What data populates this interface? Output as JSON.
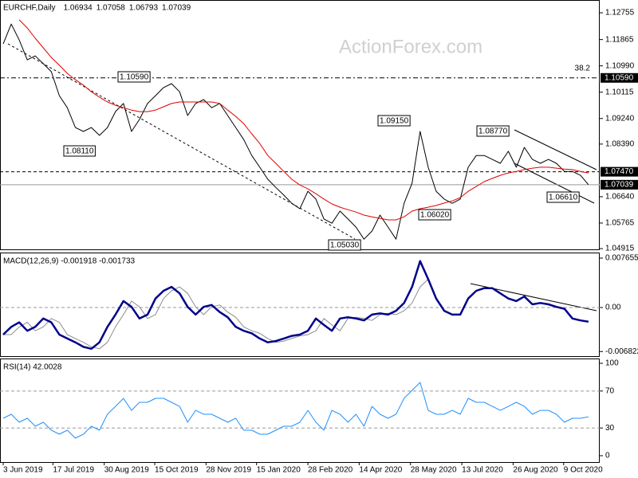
{
  "title": "EURCHF,Daily",
  "header_values": [
    1.06934,
    1.07058,
    1.06793,
    1.07039
  ],
  "watermark": "ActionForex.com",
  "fib_label": "38.2",
  "annotations": [
    "1.10590",
    "1.08110",
    "1.09150",
    "1.08770",
    "1.06610",
    "1.06020",
    "1.05030"
  ],
  "chart_data": [
    {
      "type": "line",
      "xlim": [
        -0.4,
        74.4
      ],
      "ylim": [
        1.0489,
        1.1318
      ],
      "yticks": [
        1.12755,
        1.11865,
        {
          "value": 1.1099,
          "label": "1.10990"
        },
        1.10115,
        {
          "value": 1.0924,
          "label": "1.09240"
        },
        {
          "value": 1.0839,
          "label": "1.08390"
        },
        {
          "value": 1.0664,
          "label": "1.06640"
        },
        1.05765,
        1.04915
      ],
      "xticks": [
        {
          "value": 0,
          "label": "3 Jun 2019"
        },
        {
          "value": 6.2,
          "label": "17 Jul 2019"
        },
        {
          "value": 12.6,
          "label": "30 Aug 2019"
        },
        {
          "value": 18.9,
          "label": "15 Oct 2019"
        },
        {
          "value": 25.3,
          "label": "28 Nov 2019"
        },
        {
          "value": 31.6,
          "label": "15 Jan 2020"
        },
        {
          "value": 38,
          "label": "28 Feb 2020"
        },
        {
          "value": 44.4,
          "label": "14 Apr 2020"
        },
        {
          "value": 50.8,
          "label": "28 May 2020"
        },
        {
          "value": 57.2,
          "label": "13 Jul 2020"
        },
        {
          "value": 63.6,
          "label": "26 Aug 2020"
        },
        {
          "value": 69.9,
          "label": "9 Oct 2020"
        }
      ],
      "levels": [
        {
          "value": 1.1059,
          "label": "1.10590",
          "style": "dashdot"
        },
        {
          "value": 1.0747,
          "label": "1.07470",
          "style": "dash"
        },
        {
          "value": 1.07039,
          "label": "1.07039",
          "style": "solid"
        }
      ],
      "series": [
        {
          "color": "#000000",
          "width": 1,
          "values": [
            1.1172,
            1.1238,
            1.1185,
            1.1119,
            1.1132,
            1.1106,
            1.108,
            1.1,
            1.096,
            1.0894,
            1.0881,
            1.0894,
            1.0868,
            1.0894,
            1.0947,
            1.0974,
            1.0881,
            1.0921,
            1.0974,
            1.1,
            1.1027,
            1.104,
            1.1013,
            1.0934,
            1.0974,
            1.0987,
            1.096,
            1.0974,
            1.0934,
            1.0894,
            1.0854,
            1.0801,
            1.0762,
            1.0722,
            1.0695,
            1.0669,
            1.0642,
            1.0624,
            1.0682,
            1.0656,
            1.059,
            1.0576,
            1.0616,
            1.059,
            1.0563,
            1.0523,
            1.055,
            1.0603,
            1.0563,
            1.0523,
            1.0642,
            1.0709,
            1.0881,
            1.0762,
            1.0682,
            1.0656,
            1.0642,
            1.0656,
            1.0762,
            1.0801,
            1.0801,
            1.0788,
            1.0775,
            1.0815,
            1.0762,
            1.0828,
            1.0788,
            1.0775,
            1.0788,
            1.0775,
            1.0748,
            1.0748,
            1.0735,
            1.0704
          ]
        },
        {
          "color": "#e00000",
          "width": 1,
          "values": [
            null,
            null,
            1.1252,
            1.1225,
            1.1191,
            1.1159,
            1.1127,
            1.1101,
            1.1074,
            1.1053,
            1.1035,
            1.1013,
            1.0995,
            1.0979,
            1.0968,
            1.096,
            1.0952,
            1.0947,
            1.0947,
            1.0952,
            1.0963,
            1.0974,
            1.0979,
            1.0979,
            1.0979,
            1.0979,
            1.0979,
            1.0974,
            1.0952,
            1.0931,
            1.0907,
            1.0873,
            1.0841,
            1.0801,
            1.0775,
            1.0748,
            1.0722,
            1.0703,
            1.069,
            1.0674,
            1.0656,
            1.064,
            1.0629,
            1.0621,
            1.0613,
            1.0603,
            1.0597,
            1.0592,
            1.0587,
            1.0587,
            1.0597,
            1.0616,
            1.0624,
            1.0629,
            1.0635,
            1.0643,
            1.065,
            1.0661,
            1.0682,
            1.0698,
            1.0714,
            1.0725,
            1.0735,
            1.0743,
            1.0748,
            1.0754,
            1.0759,
            1.0762,
            1.0762,
            1.0759,
            1.0756,
            1.0754,
            1.0748,
            1.0743
          ]
        }
      ]
    },
    {
      "type": "line",
      "title": "MACD(12,26,9) -0.001918 -0.001733",
      "xlim": [
        -0.4,
        74.4
      ],
      "ylim": [
        -0.00753,
        0.00852
      ],
      "yticks": [
        0.007655,
        {
          "value": 0,
          "label": "0.00"
        },
        -0.006822
      ],
      "levels": [
        {
          "value": 0,
          "style": "dash"
        }
      ],
      "series": [
        {
          "color": "#8c8c8c",
          "width": 1,
          "values": [
            -0.0042,
            -0.0042,
            -0.003,
            -0.0023,
            -0.0036,
            -0.003,
            -0.0017,
            -0.0023,
            -0.0042,
            -0.0048,
            -0.0054,
            -0.0061,
            -0.0064,
            -0.0054,
            -0.003,
            -0.0011,
            0.001,
            0.0001,
            -0.0017,
            -0.0011,
            0.0014,
            0.0026,
            0.0032,
            0.0022,
            0.0001,
            -0.0011,
            0.0001,
            0.0004,
            -0.0007,
            -0.0015,
            -0.003,
            -0.0036,
            -0.004,
            -0.0048,
            -0.0054,
            -0.0052,
            -0.0048,
            -0.0044,
            -0.0042,
            -0.0036,
            -0.0017,
            -0.0027,
            -0.0036,
            -0.0017,
            -0.0015,
            -0.0017,
            -0.002,
            -0.0011,
            -0.0009,
            -0.0011,
            -0.0005,
            0.0007,
            0.0032,
            0.0044,
            0.0014,
            -0.0005,
            -0.0011,
            -0.0011,
            0.0014,
            0.0026,
            0.003,
            0.003,
            0.0022,
            0.0014,
            0.001,
            0.0017,
            0.0005,
            0.0007,
            0.0005,
            0.0001,
            -0.0002,
            -0.0017,
            -0.002,
            -0.0022
          ]
        },
        {
          "color": "#00008b",
          "width": 2.5,
          "values": [
            -0.0042,
            -0.003,
            -0.0023,
            -0.0036,
            -0.003,
            -0.0017,
            -0.0023,
            -0.0042,
            -0.0048,
            -0.0054,
            -0.0061,
            -0.0064,
            -0.0054,
            -0.003,
            -0.0011,
            0.001,
            0.0001,
            -0.0017,
            -0.0011,
            0.0014,
            0.0026,
            0.0032,
            0.0022,
            0.0001,
            -0.0011,
            0.0001,
            0.0004,
            -0.0007,
            -0.0015,
            -0.003,
            -0.0036,
            -0.004,
            -0.0048,
            -0.0054,
            -0.0052,
            -0.0048,
            -0.0044,
            -0.0042,
            -0.0036,
            -0.0017,
            -0.0027,
            -0.0036,
            -0.0017,
            -0.0015,
            -0.0017,
            -0.002,
            -0.0011,
            -0.0009,
            -0.0011,
            -0.0005,
            0.0007,
            0.0032,
            0.0072,
            0.0044,
            0.0014,
            -0.0005,
            -0.0011,
            -0.0011,
            0.0014,
            0.0026,
            0.003,
            0.003,
            0.0022,
            0.0014,
            0.001,
            0.0017,
            0.0005,
            0.0007,
            0.0005,
            0.0001,
            -0.0002,
            -0.0017,
            -0.002,
            -0.0022
          ]
        }
      ]
    },
    {
      "type": "line",
      "title": "RSI(14) 42.0028",
      "xlim": [
        -0.4,
        74.4
      ],
      "ylim": [
        -6.9,
        105.2
      ],
      "yticks": [
        100,
        70,
        30,
        0
      ],
      "levels": [
        {
          "value": 70,
          "style": "dash"
        },
        {
          "value": 30,
          "style": "dash"
        }
      ],
      "series": [
        {
          "color": "#1e90ff",
          "width": 1,
          "values": [
            40.5,
            44.8,
            36.2,
            40.5,
            31.9,
            36.2,
            27.6,
            23.3,
            27.6,
            19.0,
            23.3,
            31.9,
            27.6,
            44.8,
            53.4,
            62.1,
            49.1,
            57.8,
            57.8,
            62.1,
            62.1,
            57.8,
            53.4,
            36.2,
            49.1,
            44.8,
            44.8,
            40.5,
            36.2,
            40.5,
            27.6,
            27.6,
            23.3,
            23.3,
            27.6,
            31.9,
            31.9,
            36.2,
            49.1,
            36.2,
            27.6,
            49.1,
            44.8,
            36.2,
            44.8,
            31.9,
            53.4,
            44.8,
            40.5,
            44.8,
            62.1,
            70.7,
            79.3,
            49.1,
            44.8,
            44.8,
            49.1,
            44.8,
            62.1,
            57.8,
            57.8,
            53.4,
            49.1,
            53.4,
            57.8,
            53.4,
            44.8,
            49.1,
            49.1,
            44.8,
            36.2,
            40.5,
            40.5,
            42.0
          ]
        }
      ]
    }
  ]
}
